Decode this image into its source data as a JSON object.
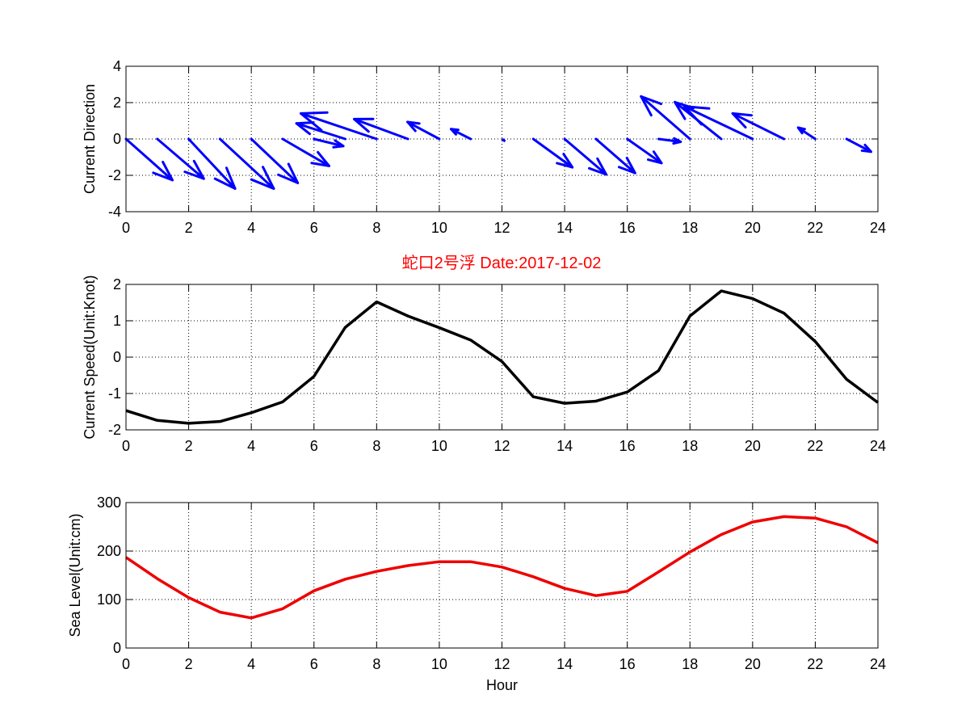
{
  "figure": {
    "title": "蛇口2号浮   Date:2017-12-02",
    "title_color": "#ff0000",
    "background": "#ffffff"
  },
  "chart_data": [
    {
      "type": "quiver",
      "ylabel": "Current Direction",
      "xlabel": "",
      "xlim": [
        0,
        24
      ],
      "ylim": [
        -4,
        4
      ],
      "xticks": [
        0,
        2,
        4,
        6,
        8,
        10,
        12,
        14,
        16,
        18,
        20,
        22,
        24
      ],
      "yticks": [
        -4,
        -2,
        0,
        2,
        4
      ],
      "grid": true,
      "color": "#0000ff",
      "arrows": [
        {
          "x": 0,
          "u": 1.9,
          "v": -2.9
        },
        {
          "x": 1,
          "u": 1.9,
          "v": -2.8
        },
        {
          "x": 2,
          "u": 1.9,
          "v": -3.5
        },
        {
          "x": 3,
          "u": 2.2,
          "v": -3.5
        },
        {
          "x": 4,
          "u": 1.9,
          "v": -3.1
        },
        {
          "x": 5,
          "u": 1.9,
          "v": -1.9
        },
        {
          "x": 6,
          "u": 1.2,
          "v": -0.5
        },
        {
          "x": 7,
          "u": -2.0,
          "v": 1.1
        },
        {
          "x": 8,
          "u": -3.1,
          "v": 1.8
        },
        {
          "x": 9,
          "u": -2.2,
          "v": 1.4
        },
        {
          "x": 10,
          "u": -1.3,
          "v": 1.2
        },
        {
          "x": 11,
          "u": -0.8,
          "v": 0.7
        },
        {
          "x": 12,
          "u": 0.0,
          "v": 0.0
        },
        {
          "x": 13,
          "u": 1.6,
          "v": -2.0
        },
        {
          "x": 14,
          "u": 1.7,
          "v": -2.5
        },
        {
          "x": 15,
          "u": 1.6,
          "v": -2.4
        },
        {
          "x": 16,
          "u": 1.4,
          "v": -1.7
        },
        {
          "x": 17,
          "u": 0.9,
          "v": -0.2
        },
        {
          "x": 18,
          "u": -2.0,
          "v": 3.0
        },
        {
          "x": 19,
          "u": -1.9,
          "v": 2.6
        },
        {
          "x": 20,
          "u": -2.8,
          "v": 2.3
        },
        {
          "x": 21,
          "u": -2.1,
          "v": 1.8
        },
        {
          "x": 22,
          "u": -0.7,
          "v": 0.8
        },
        {
          "x": 23,
          "u": 1.0,
          "v": -0.9
        }
      ]
    },
    {
      "type": "line",
      "ylabel": "Current Speed(Unit:Knot)",
      "xlabel": "",
      "xlim": [
        0,
        24
      ],
      "ylim": [
        -2,
        2
      ],
      "xticks": [
        0,
        2,
        4,
        6,
        8,
        10,
        12,
        14,
        16,
        18,
        20,
        22,
        24
      ],
      "yticks": [
        -2,
        -1,
        0,
        1,
        2
      ],
      "grid": true,
      "series": [
        {
          "color": "#000000",
          "x": [
            0,
            1,
            2,
            3,
            4,
            5,
            6,
            7,
            8,
            9,
            10,
            11,
            12,
            13,
            14,
            15,
            16,
            17,
            18,
            19,
            20,
            21,
            22,
            23,
            24
          ],
          "values": [
            -1.47,
            -1.74,
            -1.82,
            -1.77,
            -1.53,
            -1.23,
            -0.53,
            0.82,
            1.52,
            1.13,
            0.81,
            0.47,
            -0.12,
            -1.09,
            -1.27,
            -1.21,
            -0.96,
            -0.37,
            1.13,
            1.82,
            1.61,
            1.21,
            0.43,
            -0.61,
            -1.25
          ]
        }
      ]
    },
    {
      "type": "line",
      "ylabel": "Sea Level(Unit:cm)",
      "xlabel": "Hour",
      "xlim": [
        0,
        24
      ],
      "ylim": [
        0,
        300
      ],
      "xticks": [
        0,
        2,
        4,
        6,
        8,
        10,
        12,
        14,
        16,
        18,
        20,
        22,
        24
      ],
      "yticks": [
        0,
        100,
        200,
        300
      ],
      "grid": true,
      "series": [
        {
          "color": "#ee0000",
          "x": [
            0,
            1,
            2,
            3,
            4,
            5,
            6,
            7,
            8,
            9,
            10,
            11,
            12,
            13,
            14,
            15,
            16,
            17,
            18,
            19,
            20,
            21,
            22,
            23,
            24
          ],
          "values": [
            187,
            143,
            104,
            74,
            62,
            81,
            118,
            142,
            158,
            170,
            178,
            178,
            167,
            147,
            123,
            108,
            117,
            157,
            198,
            234,
            260,
            271,
            268,
            250,
            217
          ]
        }
      ]
    }
  ]
}
